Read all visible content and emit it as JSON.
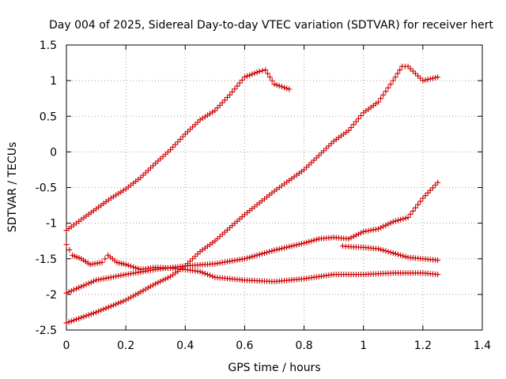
{
  "chart_data": {
    "type": "scatter",
    "title": "Day 004 of 2025, Sidereal Day-to-day VTEC variation (SDTVAR) for receiver hert",
    "xlabel": "GPS time / hours",
    "ylabel": "SDTVAR / TECUs",
    "xlim": [
      0,
      1.4
    ],
    "ylim": [
      -2.5,
      1.5
    ],
    "xticks": [
      "0",
      "0.2",
      "0.4",
      "0.6",
      "0.8",
      "1",
      "1.2",
      "1.4"
    ],
    "yticks": [
      "-2.5",
      "-2",
      "-1.5",
      "-1",
      "-0.5",
      "0",
      "0.5",
      "1",
      "1.5"
    ],
    "grid": true,
    "marker": "+",
    "color": "#cc0000",
    "series": [
      {
        "x": [
          0,
          0.05,
          0.1,
          0.15,
          0.2,
          0.25,
          0.3,
          0.35,
          0.4,
          0.45,
          0.5,
          0.55,
          0.6,
          0.65,
          0.67,
          0.7,
          0.75
        ],
        "y": [
          -1.1,
          -0.95,
          -0.8,
          -0.65,
          -0.52,
          -0.36,
          -0.16,
          0.03,
          0.25,
          0.45,
          0.58,
          0.8,
          1.05,
          1.13,
          1.15,
          0.95,
          0.88
        ]
      },
      {
        "x": [
          0,
          0.1,
          0.2,
          0.3,
          0.35,
          0.4,
          0.45,
          0.5,
          0.6,
          0.7,
          0.8,
          0.85,
          0.9,
          0.95,
          1.0,
          1.05,
          1.1,
          1.13,
          1.15,
          1.2,
          1.25
        ],
        "y": [
          -2.4,
          -2.25,
          -2.08,
          -1.85,
          -1.75,
          -1.6,
          -1.4,
          -1.25,
          -0.88,
          -0.55,
          -0.25,
          -0.05,
          0.15,
          0.3,
          0.55,
          0.7,
          1.0,
          1.2,
          1.2,
          1.0,
          1.05
        ]
      },
      {
        "x": [
          0,
          0.1,
          0.2,
          0.3,
          0.4,
          0.5,
          0.6,
          0.7,
          0.8,
          0.85,
          0.9,
          0.95,
          1.0,
          1.05,
          1.1,
          1.15,
          1.2,
          1.25
        ],
        "y": [
          -1.98,
          -1.8,
          -1.72,
          -1.65,
          -1.6,
          -1.57,
          -1.5,
          -1.38,
          -1.28,
          -1.22,
          -1.2,
          -1.22,
          -1.12,
          -1.08,
          -0.98,
          -0.92,
          -0.65,
          -0.43
        ]
      },
      {
        "x": [
          0,
          0.02,
          0.05,
          0.08,
          0.12,
          0.14,
          0.17,
          0.2,
          0.25,
          0.3,
          0.35,
          0.4,
          0.45,
          0.5,
          0.55,
          0.6,
          0.7,
          0.8,
          0.9,
          1.0,
          1.1,
          1.2,
          1.25
        ],
        "y": [
          -1.3,
          -1.45,
          -1.5,
          -1.58,
          -1.55,
          -1.45,
          -1.55,
          -1.58,
          -1.65,
          -1.62,
          -1.63,
          -1.65,
          -1.68,
          -1.76,
          -1.78,
          -1.8,
          -1.82,
          -1.78,
          -1.72,
          -1.72,
          -1.7,
          -1.7,
          -1.72
        ]
      },
      {
        "x": [
          0.93,
          0.95,
          1.0,
          1.05,
          1.1,
          1.15,
          1.2,
          1.25
        ],
        "y": [
          -1.32,
          -1.33,
          -1.34,
          -1.36,
          -1.42,
          -1.48,
          -1.5,
          -1.52
        ]
      }
    ]
  }
}
